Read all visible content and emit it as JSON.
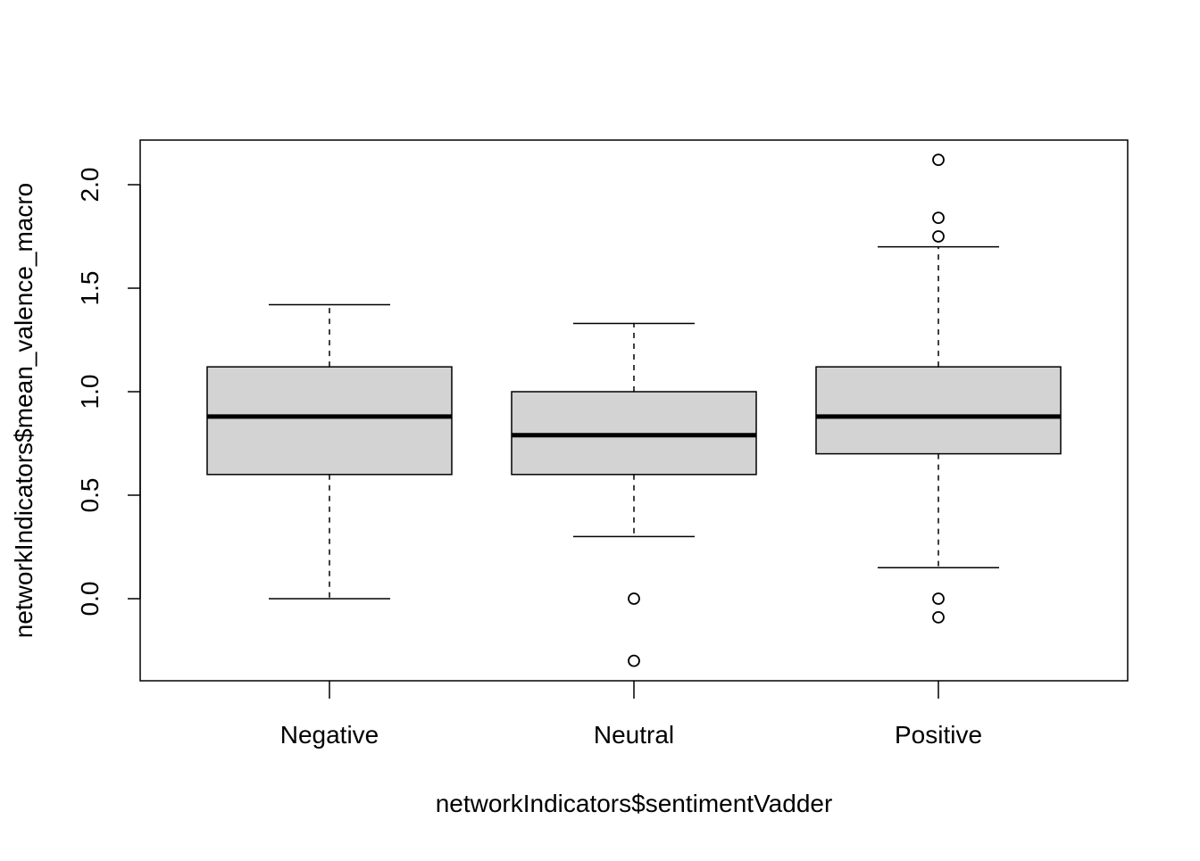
{
  "chart_data": {
    "type": "boxplot",
    "title": "",
    "xlabel": "networkIndicators$sentimentVadder",
    "ylabel": "networkIndicators$mean_valence_macro",
    "ylim": [
      -0.4,
      2.22
    ],
    "yticks": [
      0.0,
      0.5,
      1.0,
      1.5,
      2.0
    ],
    "ytick_labels": [
      "0.0",
      "0.5",
      "1.0",
      "1.5",
      "2.0"
    ],
    "grid": false,
    "legend": "none",
    "box_fill": "#d3d3d3",
    "line_color": "#000000",
    "categories": [
      "Negative",
      "Neutral",
      "Positive"
    ],
    "series": [
      {
        "category": "Negative",
        "whisker_low": 0.0,
        "q1": 0.6,
        "median": 0.88,
        "q3": 1.12,
        "whisker_high": 1.42,
        "outliers": []
      },
      {
        "category": "Neutral",
        "whisker_low": 0.3,
        "q1": 0.6,
        "median": 0.79,
        "q3": 1.0,
        "whisker_high": 1.33,
        "outliers": [
          0.0,
          -0.3
        ]
      },
      {
        "category": "Positive",
        "whisker_low": 0.15,
        "q1": 0.7,
        "median": 0.88,
        "q3": 1.12,
        "whisker_high": 1.7,
        "outliers": [
          2.12,
          1.84,
          1.75,
          0.0,
          -0.09
        ]
      }
    ]
  }
}
